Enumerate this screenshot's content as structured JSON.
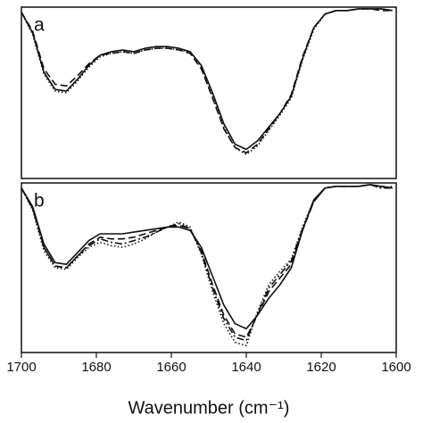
{
  "chart_data": [
    {
      "type": "line",
      "label": "a",
      "x": [
        1700,
        1697,
        1694,
        1691,
        1688,
        1685,
        1682,
        1679,
        1676,
        1673,
        1670,
        1667,
        1664,
        1661,
        1658,
        1655,
        1652,
        1649,
        1646,
        1643,
        1640,
        1637,
        1634,
        1631,
        1628,
        1625,
        1622,
        1619,
        1616,
        1613,
        1610,
        1607,
        1604,
        1601
      ],
      "xlim": [
        1700,
        1600
      ],
      "ylim": [
        0,
        1
      ],
      "series": [
        {
          "color": "#111111",
          "style": "solid",
          "values": [
            0.97,
            0.85,
            0.62,
            0.52,
            0.51,
            0.58,
            0.66,
            0.72,
            0.74,
            0.75,
            0.74,
            0.76,
            0.77,
            0.77,
            0.76,
            0.74,
            0.66,
            0.5,
            0.32,
            0.2,
            0.17,
            0.22,
            0.3,
            0.38,
            0.48,
            0.7,
            0.88,
            0.96,
            0.98,
            0.98,
            0.99,
            0.99,
            0.99,
            0.98
          ]
        },
        {
          "color": "#111111",
          "style": "dashed",
          "values": [
            0.97,
            0.86,
            0.64,
            0.55,
            0.54,
            0.6,
            0.67,
            0.72,
            0.73,
            0.74,
            0.73,
            0.75,
            0.76,
            0.76,
            0.75,
            0.73,
            0.64,
            0.47,
            0.29,
            0.18,
            0.15,
            0.2,
            0.29,
            0.38,
            0.49,
            0.71,
            0.88,
            0.96,
            0.98,
            0.98,
            0.99,
            0.99,
            0.98,
            0.98
          ]
        },
        {
          "color": "#111111",
          "style": "dotted",
          "values": [
            0.97,
            0.84,
            0.61,
            0.51,
            0.5,
            0.57,
            0.65,
            0.71,
            0.73,
            0.74,
            0.73,
            0.75,
            0.76,
            0.76,
            0.75,
            0.74,
            0.65,
            0.48,
            0.3,
            0.18,
            0.14,
            0.19,
            0.28,
            0.37,
            0.47,
            0.69,
            0.87,
            0.96,
            0.98,
            0.98,
            0.99,
            0.99,
            0.99,
            0.98
          ]
        }
      ]
    },
    {
      "type": "line",
      "label": "b",
      "x_label": "Wavenumber (cm⁻¹)",
      "x": [
        1700,
        1697,
        1694,
        1691,
        1688,
        1685,
        1682,
        1679,
        1676,
        1673,
        1670,
        1667,
        1664,
        1661,
        1658,
        1655,
        1652,
        1649,
        1646,
        1643,
        1640,
        1637,
        1634,
        1631,
        1628,
        1625,
        1622,
        1619,
        1616,
        1613,
        1610,
        1607,
        1604,
        1601
      ],
      "xlim": [
        1700,
        1600
      ],
      "ylim": [
        0,
        1
      ],
      "xticks": [
        1700,
        1680,
        1660,
        1640,
        1620,
        1600
      ],
      "series": [
        {
          "color": "#111111",
          "style": "solid",
          "values": [
            0.97,
            0.86,
            0.64,
            0.53,
            0.52,
            0.59,
            0.66,
            0.7,
            0.7,
            0.7,
            0.71,
            0.72,
            0.73,
            0.74,
            0.74,
            0.72,
            0.62,
            0.45,
            0.28,
            0.17,
            0.14,
            0.22,
            0.32,
            0.4,
            0.5,
            0.72,
            0.9,
            0.97,
            0.98,
            0.98,
            0.98,
            0.99,
            0.98,
            0.97
          ]
        },
        {
          "color": "#111111",
          "style": "dashed",
          "values": [
            0.97,
            0.85,
            0.62,
            0.51,
            0.5,
            0.57,
            0.64,
            0.68,
            0.67,
            0.67,
            0.68,
            0.7,
            0.72,
            0.74,
            0.75,
            0.73,
            0.6,
            0.4,
            0.22,
            0.11,
            0.09,
            0.22,
            0.36,
            0.44,
            0.52,
            0.72,
            0.89,
            0.97,
            0.98,
            0.98,
            0.98,
            0.99,
            0.98,
            0.97
          ]
        },
        {
          "color": "#111111",
          "style": "dashdot",
          "values": [
            0.97,
            0.85,
            0.62,
            0.51,
            0.5,
            0.57,
            0.63,
            0.67,
            0.65,
            0.64,
            0.66,
            0.68,
            0.71,
            0.74,
            0.76,
            0.73,
            0.59,
            0.38,
            0.2,
            0.09,
            0.07,
            0.23,
            0.38,
            0.46,
            0.54,
            0.73,
            0.89,
            0.97,
            0.98,
            0.98,
            0.98,
            0.99,
            0.97,
            0.97
          ]
        },
        {
          "color": "#111111",
          "style": "dotted",
          "values": [
            0.97,
            0.84,
            0.6,
            0.5,
            0.49,
            0.56,
            0.62,
            0.65,
            0.63,
            0.62,
            0.64,
            0.67,
            0.71,
            0.74,
            0.77,
            0.74,
            0.58,
            0.36,
            0.17,
            0.06,
            0.04,
            0.24,
            0.4,
            0.48,
            0.55,
            0.74,
            0.9,
            0.97,
            0.98,
            0.98,
            0.98,
            0.99,
            0.97,
            0.98
          ]
        }
      ]
    }
  ]
}
